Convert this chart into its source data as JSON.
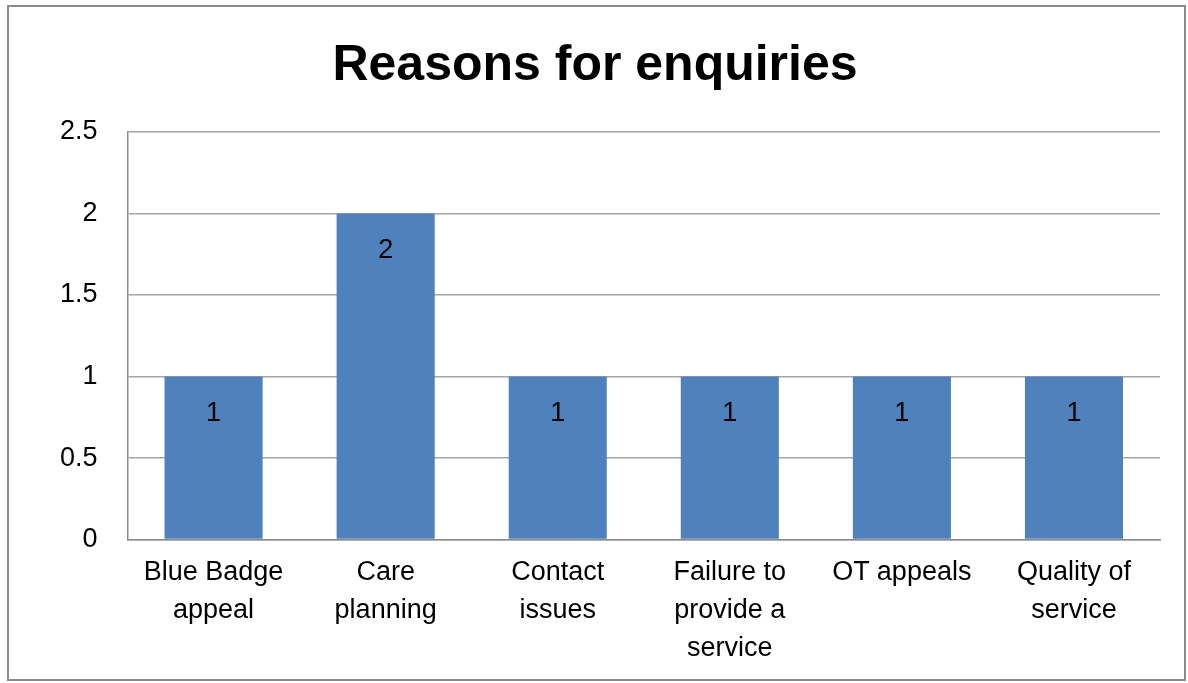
{
  "chart_data": {
    "type": "bar",
    "title": "Reasons for enquiries",
    "categories": [
      "Blue Badge appeal",
      "Care planning",
      "Contact issues",
      "Failure to provide a service",
      "OT appeals",
      "Quality of service"
    ],
    "values": [
      1,
      2,
      1,
      1,
      1,
      1
    ],
    "color": "#4f81bd",
    "ylim": [
      0,
      2.5
    ],
    "yticks": [
      0,
      0.5,
      1,
      1.5,
      2,
      2.5
    ],
    "grid": "y",
    "data_labels": true
  }
}
